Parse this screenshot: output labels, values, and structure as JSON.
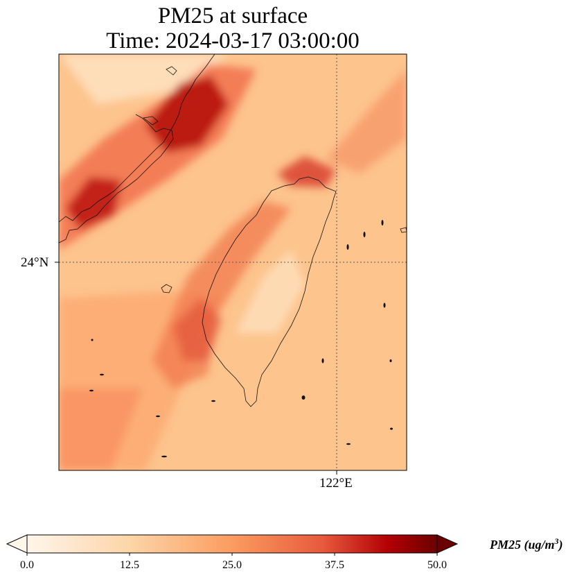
{
  "title": {
    "line1": "PM25 at surface",
    "line2": "Time: 2024-03-17 03:00:00"
  },
  "axes": {
    "lat_label": "24°N",
    "lon_label": "122°E"
  },
  "colorbar": {
    "ticks": [
      "0.0",
      "12.5",
      "25.0",
      "37.5",
      "50.0"
    ],
    "label_main": "PM25 (ug/m",
    "label_sup": "3",
    "label_end": ")",
    "colors": [
      "#fff5eb",
      "#fdd5a7",
      "#fb9c60",
      "#e85a3c",
      "#b30005",
      "#6b0000"
    ]
  }
}
